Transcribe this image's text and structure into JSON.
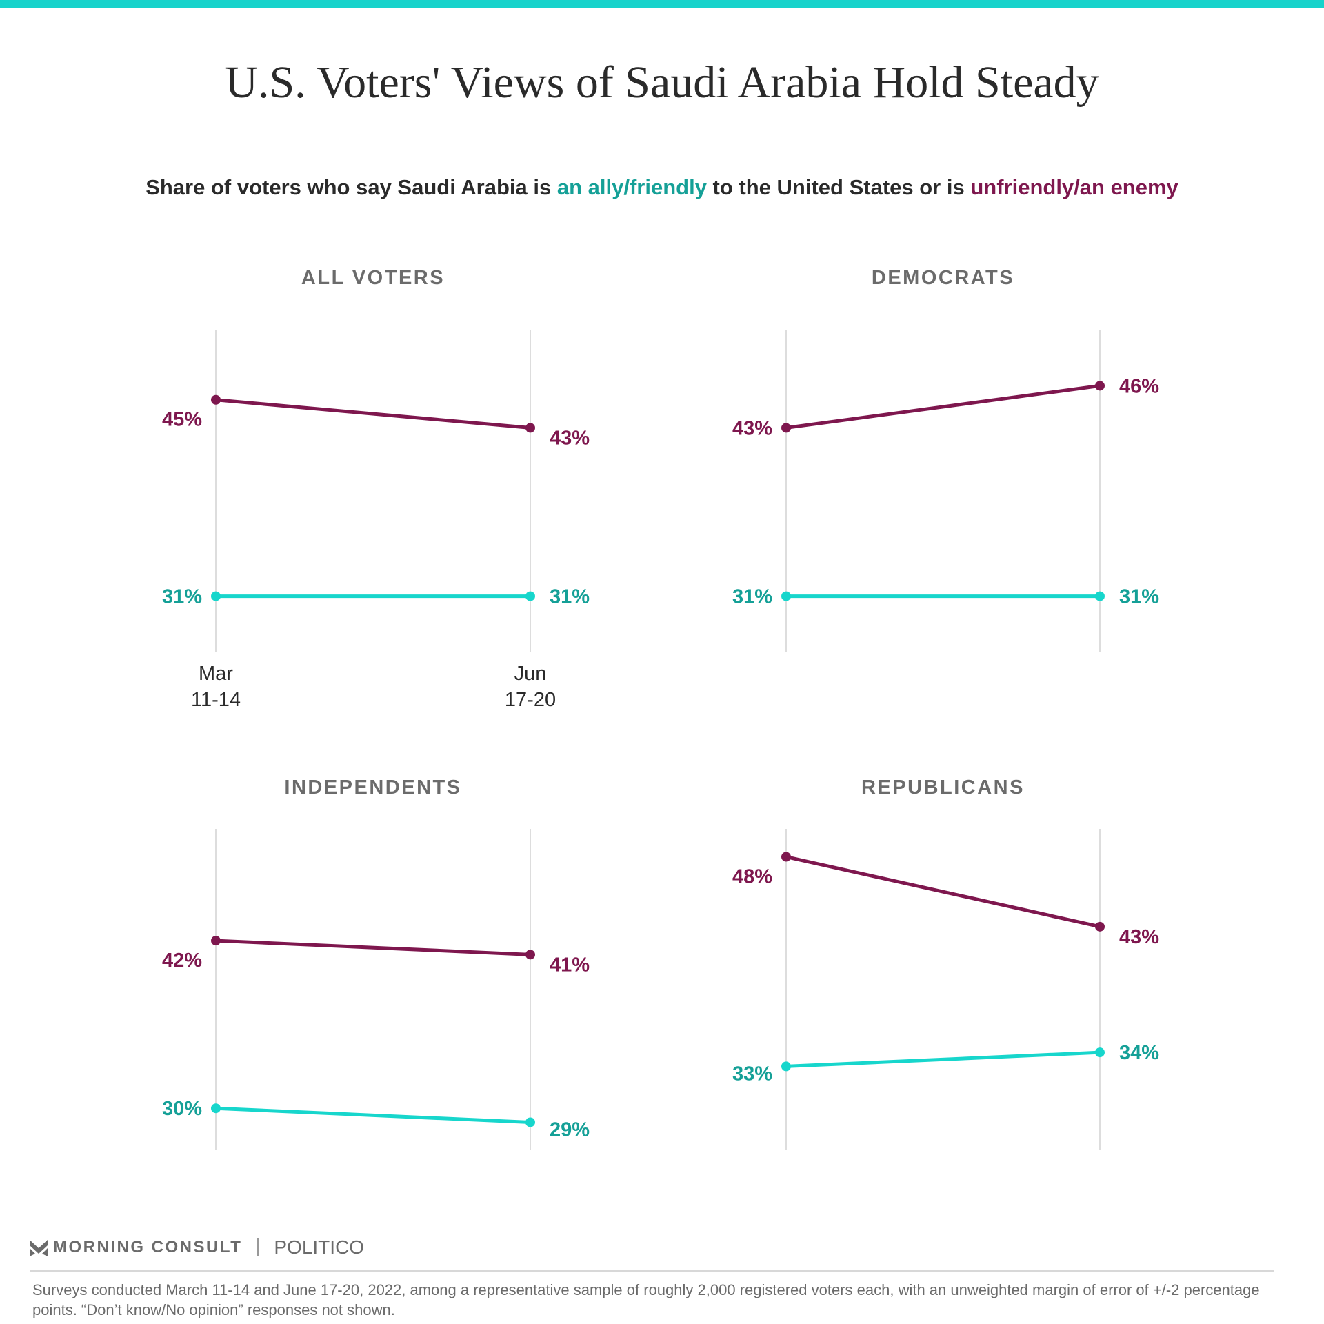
{
  "title": "U.S. Voters' Views of Saudi Arabia Hold Steady",
  "subtitle": {
    "part1": "Share of voters who say Saudi Arabia is ",
    "ally": "an ally/friendly",
    "part2": " to the United States or is ",
    "enemy": "unfriendly/an enemy"
  },
  "colors": {
    "accent_bar": "#17d3cb",
    "ally_line": "#17d6cc",
    "ally_label": "#15a097",
    "enemy": "#7e174e",
    "gridline": "#dddddd"
  },
  "chart_data": [
    {
      "type": "line",
      "title": "ALL VOTERS",
      "categories": [
        "Mar 11-14",
        "Jun 17-20"
      ],
      "x_tick_labels": [
        [
          "Mar",
          "11-14"
        ],
        [
          "Jun",
          "17-20"
        ]
      ],
      "ylim": [
        27,
        50
      ],
      "series": [
        {
          "name": "an ally/friendly",
          "values": [
            31,
            31
          ],
          "labels": [
            "31%",
            "31%"
          ]
        },
        {
          "name": "unfriendly/an enemy",
          "values": [
            45,
            43
          ],
          "labels": [
            "45%",
            "43%"
          ]
        }
      ]
    },
    {
      "type": "line",
      "title": "DEMOCRATS",
      "categories": [
        "Mar 11-14",
        "Jun 17-20"
      ],
      "ylim": [
        27,
        50
      ],
      "series": [
        {
          "name": "an ally/friendly",
          "values": [
            31,
            31
          ],
          "labels": [
            "31%",
            "31%"
          ]
        },
        {
          "name": "unfriendly/an enemy",
          "values": [
            43,
            46
          ],
          "labels": [
            "43%",
            "46%"
          ]
        }
      ]
    },
    {
      "type": "line",
      "title": "INDEPENDENTS",
      "categories": [
        "Mar 11-14",
        "Jun 17-20"
      ],
      "ylim": [
        27,
        50
      ],
      "series": [
        {
          "name": "an ally/friendly",
          "values": [
            30,
            29
          ],
          "labels": [
            "30%",
            "29%"
          ]
        },
        {
          "name": "unfriendly/an enemy",
          "values": [
            42,
            41
          ],
          "labels": [
            "42%",
            "41%"
          ]
        }
      ]
    },
    {
      "type": "line",
      "title": "REPUBLICANS",
      "categories": [
        "Mar 11-14",
        "Jun 17-20"
      ],
      "ylim": [
        27,
        50
      ],
      "series": [
        {
          "name": "an ally/friendly",
          "values": [
            33,
            34
          ],
          "labels": [
            "33%",
            "34%"
          ]
        },
        {
          "name": "unfriendly/an enemy",
          "values": [
            48,
            43
          ],
          "labels": [
            "48%",
            "43%"
          ]
        }
      ]
    }
  ],
  "footer": {
    "logo_morning_consult": "MORNING CONSULT",
    "logo_politico": "POLITICO",
    "note": "Surveys conducted March 11-14 and June 17-20, 2022, among a representative sample of roughly 2,000 registered voters each, with an unweighted margin of error of +/-2 percentage points. “Don’t know/No opinion” responses not shown."
  }
}
